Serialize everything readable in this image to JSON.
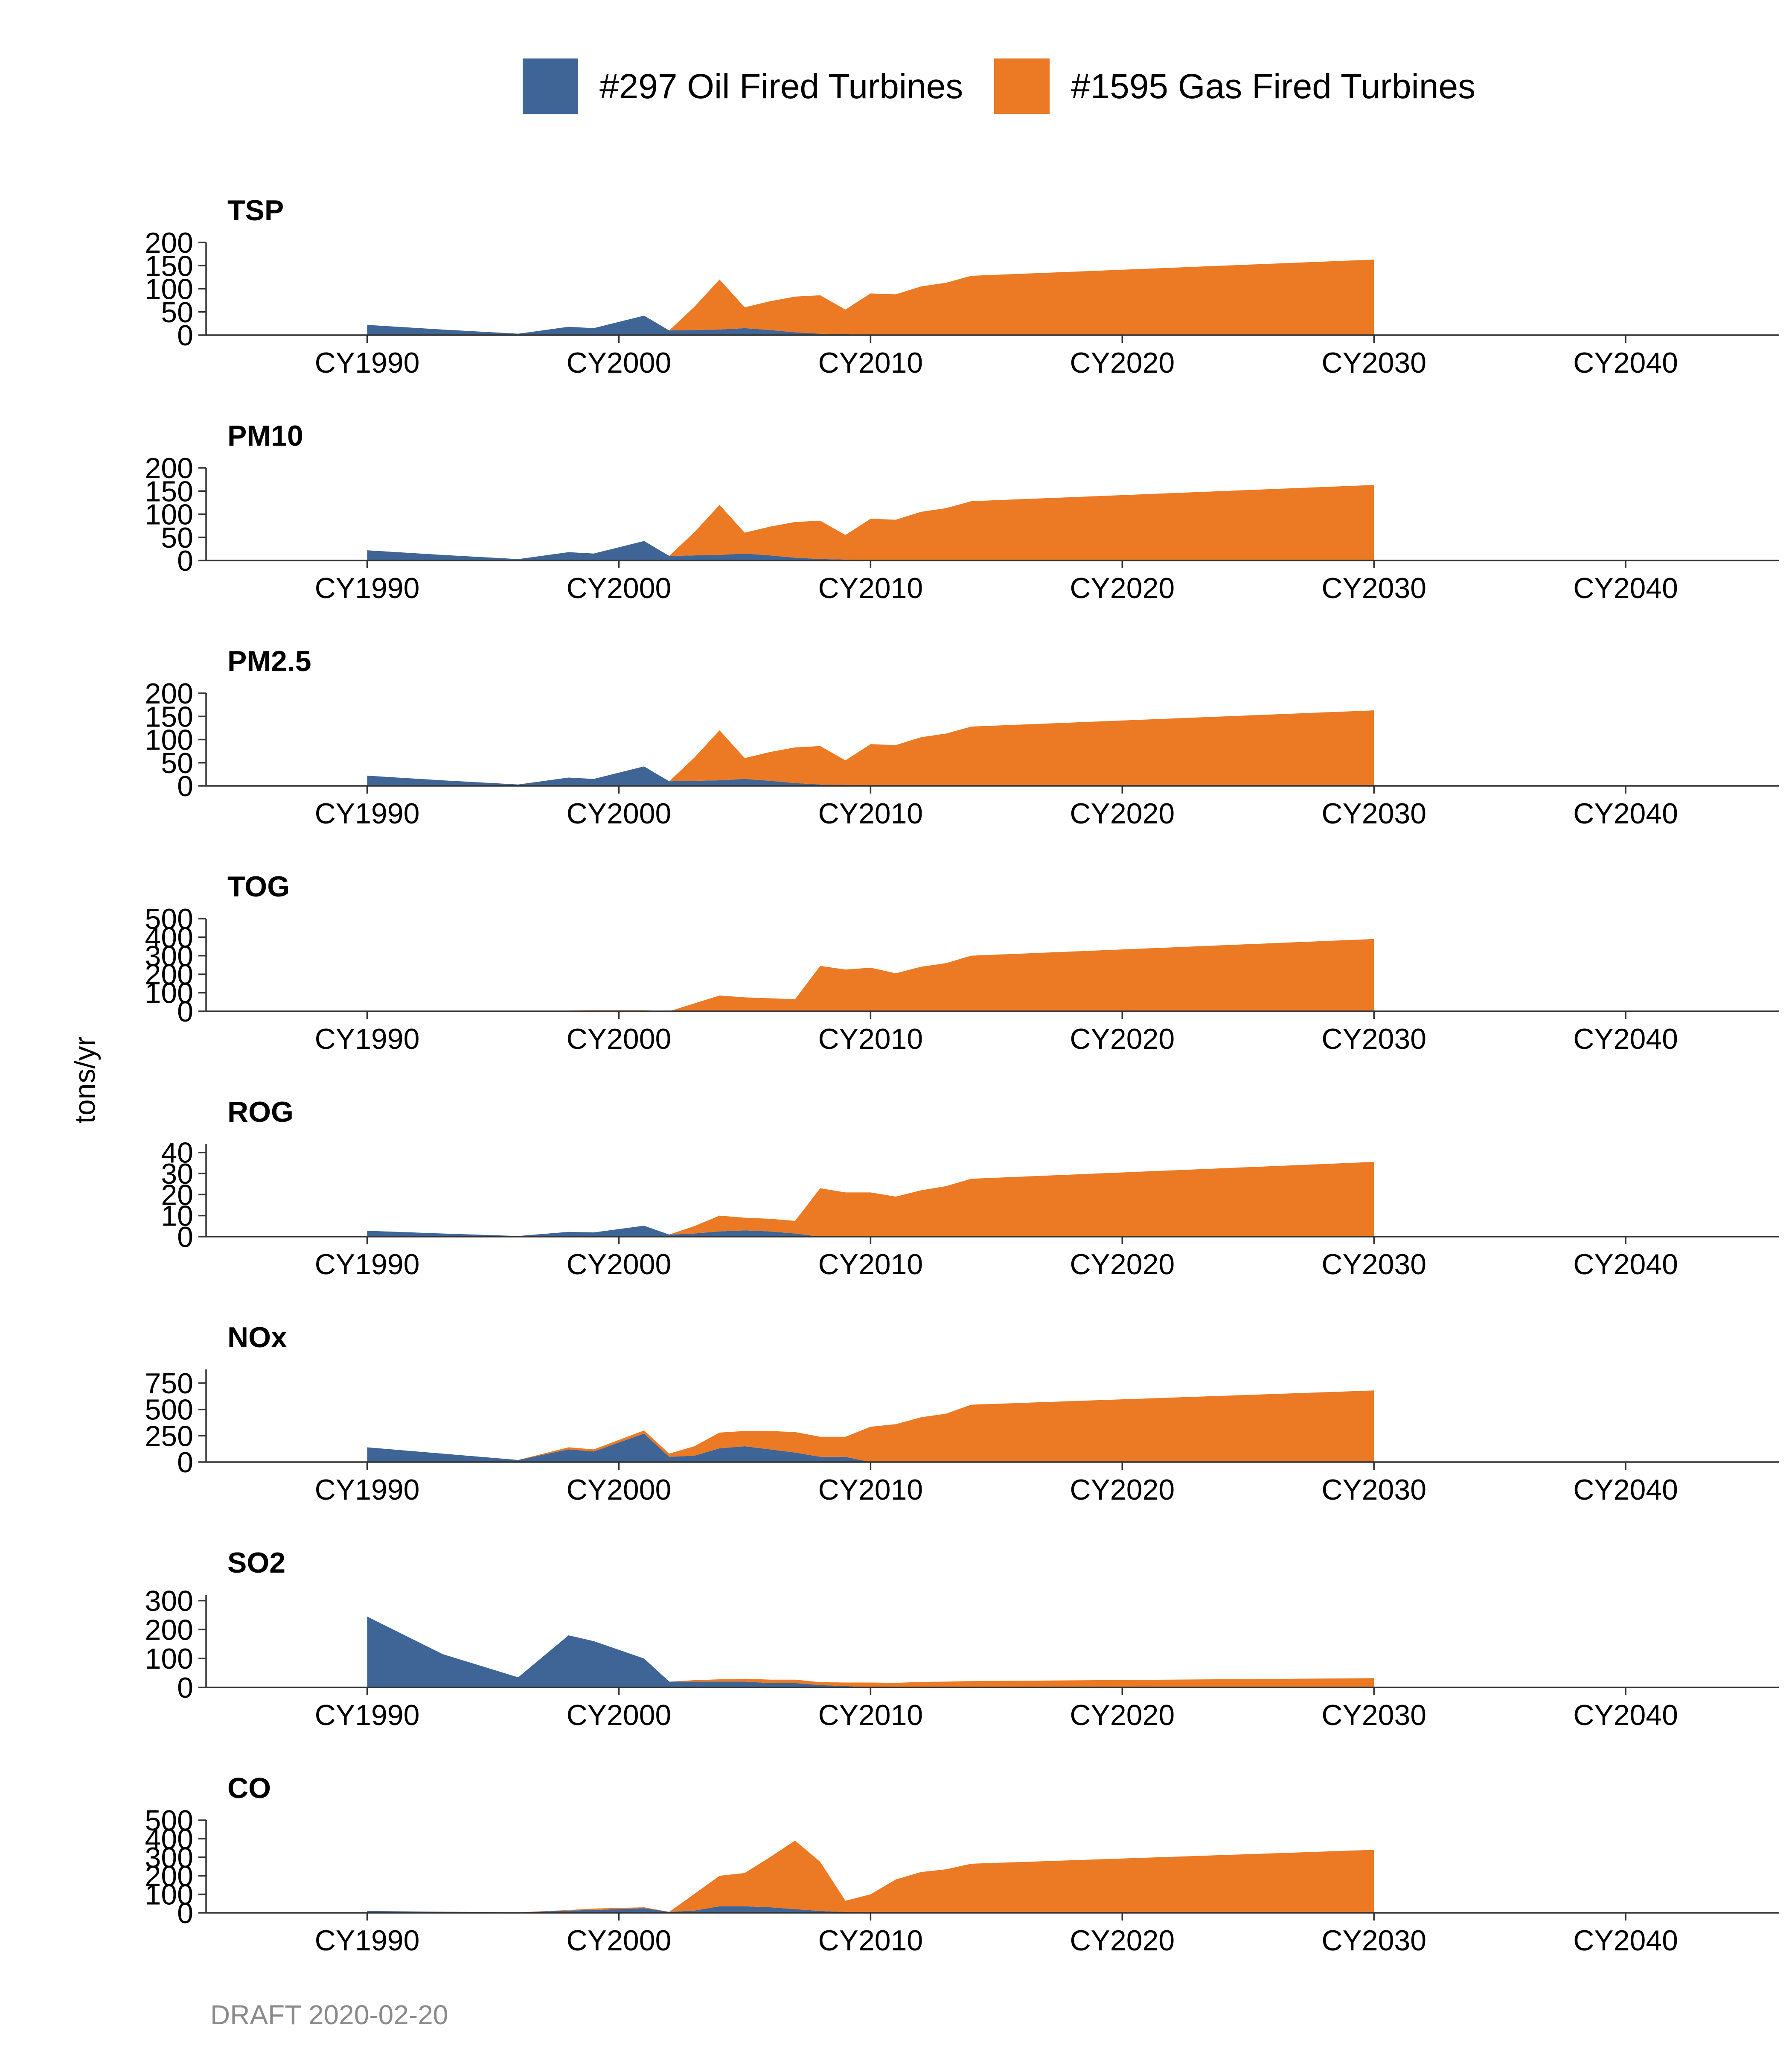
{
  "legend": [
    {
      "label": "#297 Oil Fired Turbines",
      "color": "#3f6596"
    },
    {
      "label": "#1595 Gas Fired Turbines",
      "color": "#ec7a24"
    }
  ],
  "ylabel": "tons/yr",
  "caption": "DRAFT 2020-02-20",
  "x_ticks": [
    1990,
    2000,
    2010,
    2020,
    2030,
    2040
  ],
  "x_tick_labels": [
    "CY1990",
    "CY2000",
    "CY2010",
    "CY2020",
    "CY2030",
    "CY2040"
  ],
  "chart_data": [
    {
      "type": "area",
      "stacked": true,
      "title": "TSP",
      "xlim": [
        1983.6,
        2046.1
      ],
      "ylim": [
        0,
        200
      ],
      "yticks": [
        0,
        50,
        100,
        150,
        200
      ],
      "x": [
        1990,
        1993,
        1996,
        1998,
        1999,
        2001,
        2002,
        2003,
        2004,
        2005,
        2006,
        2007,
        2008,
        2009,
        2010,
        2011,
        2012,
        2013,
        2014,
        2030
      ],
      "series": [
        {
          "name": "#297 Oil Fired Turbines",
          "values": [
            22,
            12,
            3,
            18,
            15,
            42,
            10,
            11,
            12,
            15,
            11,
            6,
            3,
            2,
            0,
            0,
            0,
            0,
            0,
            0
          ]
        },
        {
          "name": "#1595 Gas Fired Turbines",
          "values": [
            0,
            0,
            0,
            0,
            0,
            0,
            0,
            50,
            108,
            45,
            62,
            77,
            83,
            53,
            90,
            88,
            105,
            113,
            128,
            163
          ]
        }
      ]
    },
    {
      "type": "area",
      "stacked": true,
      "title": "PM10",
      "xlim": [
        1983.6,
        2046.1
      ],
      "ylim": [
        0,
        200
      ],
      "yticks": [
        0,
        50,
        100,
        150,
        200
      ],
      "x": [
        1990,
        1993,
        1996,
        1998,
        1999,
        2001,
        2002,
        2003,
        2004,
        2005,
        2006,
        2007,
        2008,
        2009,
        2010,
        2011,
        2012,
        2013,
        2014,
        2030
      ],
      "series": [
        {
          "name": "#297 Oil Fired Turbines",
          "values": [
            22,
            12,
            3,
            18,
            15,
            42,
            10,
            11,
            12,
            15,
            11,
            6,
            3,
            2,
            0,
            0,
            0,
            0,
            0,
            0
          ]
        },
        {
          "name": "#1595 Gas Fired Turbines",
          "values": [
            0,
            0,
            0,
            0,
            0,
            0,
            0,
            50,
            108,
            45,
            62,
            77,
            83,
            53,
            90,
            88,
            105,
            113,
            128,
            163
          ]
        }
      ]
    },
    {
      "type": "area",
      "stacked": true,
      "title": "PM2.5",
      "xlim": [
        1983.6,
        2046.1
      ],
      "ylim": [
        0,
        200
      ],
      "yticks": [
        0,
        50,
        100,
        150,
        200
      ],
      "x": [
        1990,
        1993,
        1996,
        1998,
        1999,
        2001,
        2002,
        2003,
        2004,
        2005,
        2006,
        2007,
        2008,
        2009,
        2010,
        2011,
        2012,
        2013,
        2014,
        2030
      ],
      "series": [
        {
          "name": "#297 Oil Fired Turbines",
          "values": [
            22,
            12,
            3,
            18,
            15,
            42,
            10,
            11,
            12,
            15,
            11,
            6,
            3,
            2,
            0,
            0,
            0,
            0,
            0,
            0
          ]
        },
        {
          "name": "#1595 Gas Fired Turbines",
          "values": [
            0,
            0,
            0,
            0,
            0,
            0,
            0,
            50,
            108,
            45,
            62,
            77,
            83,
            53,
            90,
            88,
            105,
            113,
            128,
            163
          ]
        }
      ]
    },
    {
      "type": "area",
      "stacked": true,
      "title": "TOG",
      "xlim": [
        1983.6,
        2046.1
      ],
      "ylim": [
        0,
        500
      ],
      "yticks": [
        0,
        100,
        200,
        300,
        400,
        500
      ],
      "x": [
        1990,
        1996,
        1999,
        2001,
        2002,
        2004,
        2005,
        2007,
        2008,
        2009,
        2010,
        2011,
        2012,
        2013,
        2014,
        2030
      ],
      "series": [
        {
          "name": "#297 Oil Fired Turbines",
          "values": [
            0,
            0,
            0,
            0,
            0,
            0,
            0,
            0,
            0,
            0,
            0,
            0,
            0,
            0,
            0,
            0
          ]
        },
        {
          "name": "#1595 Gas Fired Turbines",
          "values": [
            0,
            0,
            5,
            5,
            0,
            85,
            75,
            65,
            245,
            225,
            235,
            205,
            240,
            260,
            300,
            390
          ]
        }
      ]
    },
    {
      "type": "area",
      "stacked": true,
      "title": "ROG",
      "xlim": [
        1983.6,
        2046.1
      ],
      "ylim": [
        0,
        44
      ],
      "yticks": [
        0,
        10,
        20,
        30,
        40
      ],
      "x": [
        1990,
        1993,
        1996,
        1998,
        1999,
        2001,
        2002,
        2003,
        2004,
        2005,
        2006,
        2007,
        2008,
        2009,
        2010,
        2011,
        2012,
        2013,
        2014,
        2030
      ],
      "series": [
        {
          "name": "#297 Oil Fired Turbines",
          "values": [
            2.8,
            1.5,
            0.3,
            2.3,
            2,
            5.2,
            1,
            1.5,
            2.5,
            3,
            2.5,
            1.5,
            0,
            0,
            0,
            0,
            0,
            0,
            0,
            0
          ]
        },
        {
          "name": "#1595 Gas Fired Turbines",
          "values": [
            0,
            0,
            0,
            0,
            0,
            0,
            0,
            3.5,
            7.5,
            6,
            6,
            6,
            23,
            21,
            21,
            19,
            22,
            24,
            27.5,
            35.5
          ]
        }
      ]
    },
    {
      "type": "area",
      "stacked": true,
      "title": "NOx",
      "xlim": [
        1983.6,
        2046.1
      ],
      "ylim": [
        0,
        880
      ],
      "yticks": [
        0,
        250,
        500,
        750
      ],
      "x": [
        1990,
        1996,
        1998,
        1999,
        2001,
        2002,
        2003,
        2004,
        2005,
        2006,
        2007,
        2008,
        2009,
        2010,
        2011,
        2012,
        2013,
        2014,
        2030
      ],
      "series": [
        {
          "name": "#297 Oil Fired Turbines",
          "values": [
            140,
            20,
            120,
            100,
            270,
            50,
            60,
            130,
            150,
            120,
            90,
            50,
            50,
            0,
            0,
            0,
            0,
            0,
            0
          ]
        },
        {
          "name": "#1595 Gas Fired Turbines",
          "values": [
            0,
            0,
            20,
            20,
            30,
            30,
            90,
            150,
            145,
            175,
            195,
            190,
            190,
            335,
            360,
            425,
            460,
            545,
            680
          ]
        }
      ]
    },
    {
      "type": "area",
      "stacked": true,
      "title": "SO2",
      "xlim": [
        1983.6,
        2046.1
      ],
      "ylim": [
        0,
        320
      ],
      "yticks": [
        0,
        100,
        200,
        300
      ],
      "x": [
        1990,
        1993,
        1996,
        1998,
        1999,
        2001,
        2002,
        2003,
        2004,
        2005,
        2006,
        2007,
        2008,
        2009,
        2010,
        2011,
        2012,
        2013,
        2014,
        2030
      ],
      "series": [
        {
          "name": "#297 Oil Fired Turbines",
          "values": [
            245,
            115,
            35,
            180,
            160,
            100,
            20,
            20,
            20,
            20,
            15,
            15,
            8,
            5,
            0,
            0,
            0,
            0,
            0,
            0
          ]
        },
        {
          "name": "#1595 Gas Fired Turbines",
          "values": [
            0,
            0,
            0,
            0,
            0,
            0,
            0,
            5,
            8,
            10,
            12,
            12,
            10,
            12,
            17,
            16,
            19,
            20,
            22,
            32
          ]
        }
      ]
    },
    {
      "type": "area",
      "stacked": true,
      "title": "CO",
      "xlim": [
        1983.6,
        2046.1
      ],
      "ylim": [
        0,
        500
      ],
      "yticks": [
        0,
        100,
        200,
        300,
        400,
        500
      ],
      "x": [
        1990,
        1993,
        1996,
        1998,
        1999,
        2001,
        2002,
        2003,
        2004,
        2005,
        2006,
        2007,
        2008,
        2009,
        2010,
        2011,
        2012,
        2013,
        2014,
        2030
      ],
      "series": [
        {
          "name": "#297 Oil Fired Turbines",
          "values": [
            10,
            6,
            3,
            12,
            15,
            25,
            5,
            12,
            35,
            35,
            30,
            20,
            10,
            5,
            0,
            0,
            0,
            0,
            0,
            0
          ]
        },
        {
          "name": "#1595 Gas Fired Turbines",
          "values": [
            0,
            0,
            0,
            3,
            8,
            5,
            0,
            90,
            165,
            180,
            270,
            370,
            265,
            60,
            100,
            180,
            220,
            235,
            265,
            340
          ]
        }
      ]
    }
  ]
}
